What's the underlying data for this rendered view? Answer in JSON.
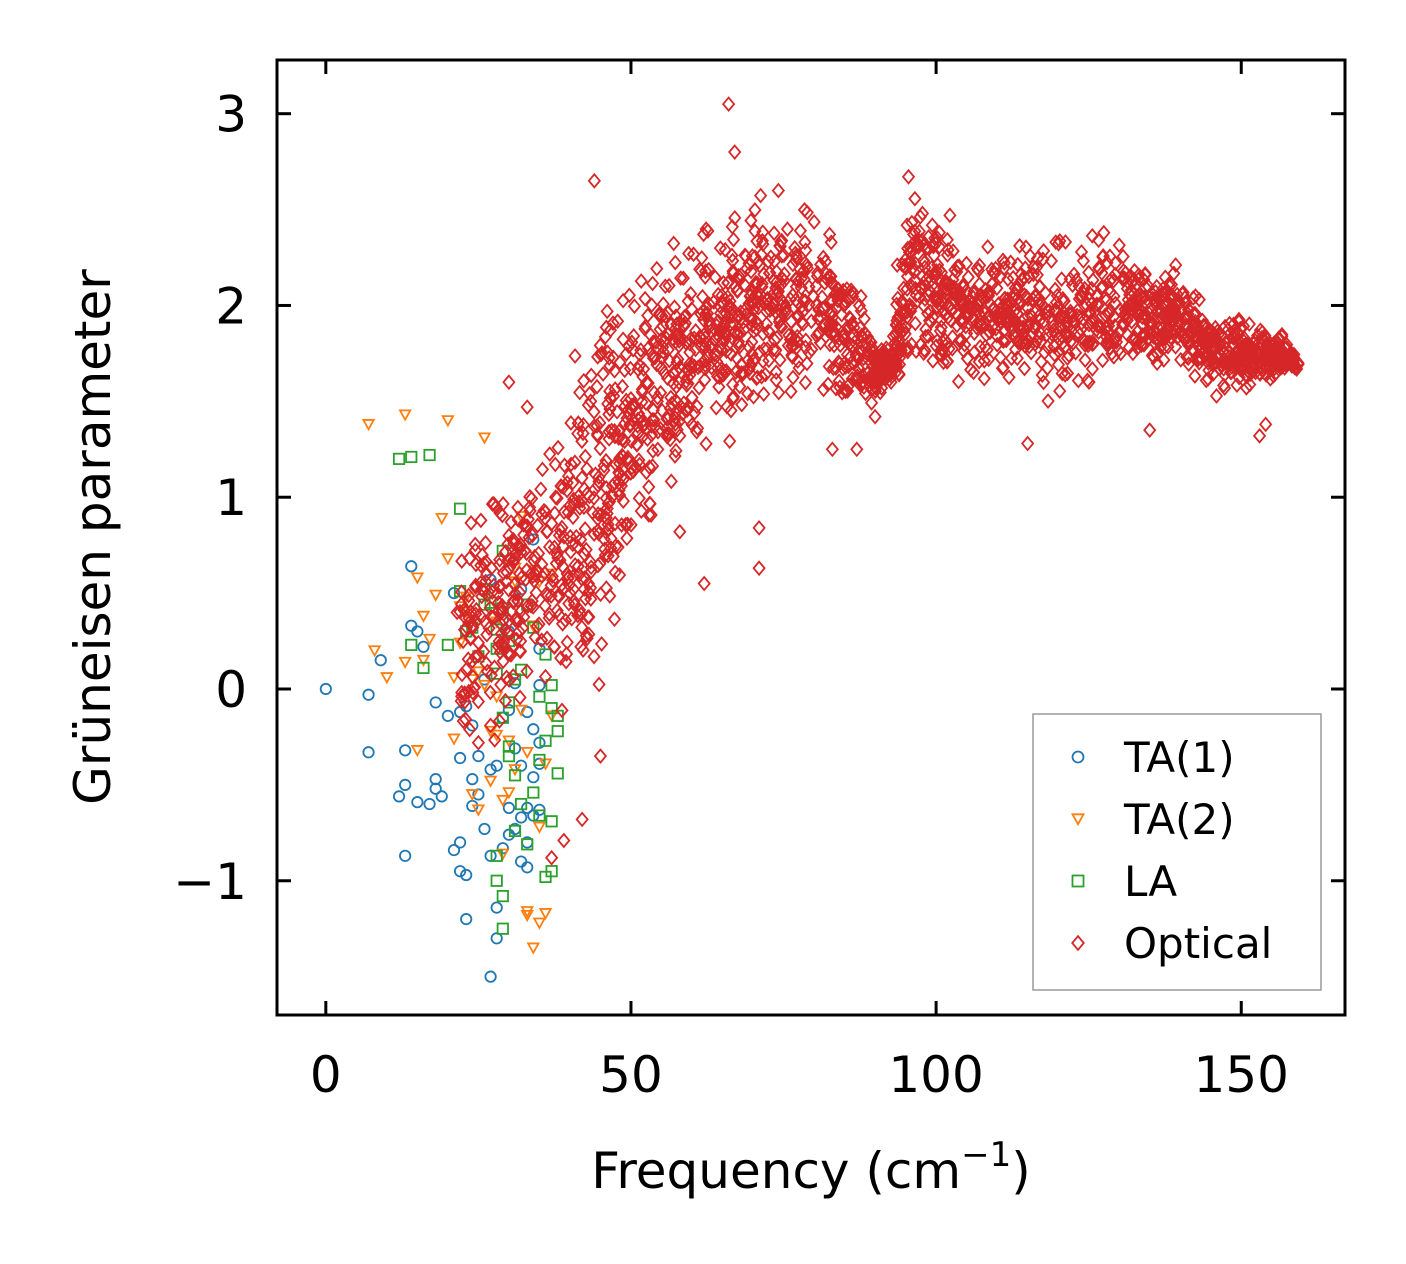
{
  "chart_data": {
    "type": "scatter",
    "xlabel": "Frequency (cm",
    "xlabel_sup": "−1",
    "xlabel_close": ")",
    "ylabel": "Grüneisen parameter",
    "xlim": [
      -8,
      167
    ],
    "ylim": [
      -1.7,
      3.28
    ],
    "xticks": [
      0,
      50,
      100,
      150
    ],
    "xtick_labels": [
      "0",
      "50",
      "100",
      "150"
    ],
    "yticks": [
      -1,
      0,
      1,
      2,
      3
    ],
    "ytick_labels": [
      "−1",
      "0",
      "1",
      "2",
      "3"
    ],
    "legend_position": "lower-right",
    "series": [
      {
        "name": "TA(1)",
        "marker": "circle",
        "color": "#1f77b4",
        "points": [
          [
            0,
            0
          ],
          [
            7,
            -0.03
          ],
          [
            7,
            -0.33
          ],
          [
            9,
            0.15
          ],
          [
            12,
            -0.56
          ],
          [
            13,
            -0.5
          ],
          [
            13,
            -0.87
          ],
          [
            13,
            -0.32
          ],
          [
            14,
            0.64
          ],
          [
            14,
            0.33
          ],
          [
            15,
            0.3
          ],
          [
            15,
            -0.59
          ],
          [
            16,
            0.22
          ],
          [
            17,
            -0.6
          ],
          [
            18,
            -0.07
          ],
          [
            18,
            -0.47
          ],
          [
            18,
            -0.52
          ],
          [
            19,
            -0.56
          ],
          [
            20,
            -0.14
          ],
          [
            21,
            -0.84
          ],
          [
            21,
            0.5
          ],
          [
            22,
            -0.8
          ],
          [
            22,
            -0.95
          ],
          [
            22,
            -0.36
          ],
          [
            22,
            -0.12
          ],
          [
            23,
            -1.2
          ],
          [
            23,
            -0.97
          ],
          [
            23,
            -0.09
          ],
          [
            24,
            -0.47
          ],
          [
            24,
            -0.61
          ],
          [
            24,
            -0.19
          ],
          [
            25,
            -0.55
          ],
          [
            25,
            -0.35
          ],
          [
            26,
            -0.73
          ],
          [
            26,
            0.05
          ],
          [
            27,
            -0.87
          ],
          [
            27,
            -0.42
          ],
          [
            27,
            -1.5
          ],
          [
            27,
            0.57
          ],
          [
            28,
            -0.4
          ],
          [
            28,
            -1.3
          ],
          [
            28,
            -1.14
          ],
          [
            29,
            -0.15
          ],
          [
            29,
            0.36
          ],
          [
            29,
            -0.83
          ],
          [
            30,
            0.3
          ],
          [
            30,
            -0.11
          ],
          [
            30,
            -0.62
          ],
          [
            30,
            -0.76
          ],
          [
            31,
            -0.73
          ],
          [
            31,
            -0.31
          ],
          [
            31,
            0.03
          ],
          [
            32,
            -0.9
          ],
          [
            32,
            -0.4
          ],
          [
            32,
            -0.67
          ],
          [
            32,
            0.52
          ],
          [
            33,
            -0.93
          ],
          [
            33,
            -0.62
          ],
          [
            33,
            -0.8
          ],
          [
            33,
            -0.12
          ],
          [
            34,
            0.78
          ],
          [
            34,
            -0.46
          ],
          [
            34,
            -0.21
          ],
          [
            34,
            -0.66
          ],
          [
            35,
            -0.63
          ],
          [
            35,
            -0.28
          ],
          [
            35,
            0.02
          ],
          [
            35,
            -0.39
          ],
          [
            35,
            0.21
          ]
        ]
      },
      {
        "name": "TA(2)",
        "marker": "triangle-down",
        "color": "#ff7f0e",
        "points": [
          [
            7,
            1.38
          ],
          [
            8,
            0.2
          ],
          [
            10,
            0.06
          ],
          [
            13,
            0.14
          ],
          [
            13,
            1.43
          ],
          [
            15,
            0.58
          ],
          [
            15,
            -0.32
          ],
          [
            16,
            0.38
          ],
          [
            16,
            0.15
          ],
          [
            17,
            0.26
          ],
          [
            18,
            0.49
          ],
          [
            19,
            0.89
          ],
          [
            20,
            1.4
          ],
          [
            20,
            0.68
          ],
          [
            21,
            -0.26
          ],
          [
            21,
            0.06
          ],
          [
            22,
            0.24
          ],
          [
            22,
            0.43
          ],
          [
            23,
            0.48
          ],
          [
            23,
            0.4
          ],
          [
            24,
            -0.55
          ],
          [
            24,
            0.05
          ],
          [
            25,
            -0.63
          ],
          [
            25,
            0.09
          ],
          [
            26,
            1.31
          ],
          [
            26,
            0.02
          ],
          [
            27,
            -0.22
          ],
          [
            27,
            -0.48
          ],
          [
            28,
            -0.24
          ],
          [
            28,
            0.35
          ],
          [
            28,
            -0.04
          ],
          [
            29,
            -0.58
          ],
          [
            29,
            -0.86
          ],
          [
            30,
            -0.54
          ],
          [
            30,
            -0.27
          ],
          [
            31,
            0.63
          ],
          [
            31,
            -0.42
          ],
          [
            31,
            0.56
          ],
          [
            32,
            0.9
          ],
          [
            32,
            -0.11
          ],
          [
            33,
            -1.18
          ],
          [
            33,
            -0.33
          ],
          [
            33,
            -1.16
          ],
          [
            34,
            -1.35
          ],
          [
            34,
            0.33
          ],
          [
            34,
            0.62
          ],
          [
            35,
            -1.22
          ],
          [
            35,
            0.56
          ],
          [
            35,
            -0.72
          ],
          [
            36,
            -1.17
          ],
          [
            36,
            -0.39
          ],
          [
            37,
            -0.14
          ],
          [
            37,
            0.6
          ]
        ]
      },
      {
        "name": "LA",
        "marker": "square",
        "color": "#2ca02c",
        "points": [
          [
            12,
            1.2
          ],
          [
            14,
            1.21
          ],
          [
            17,
            1.22
          ],
          [
            14,
            0.23
          ],
          [
            16,
            0.11
          ],
          [
            20,
            0.23
          ],
          [
            22,
            0.51
          ],
          [
            22,
            0.94
          ],
          [
            23,
            0.3
          ],
          [
            24,
            0.32
          ],
          [
            25,
            0.17
          ],
          [
            26,
            0.52
          ],
          [
            26,
            0.44
          ],
          [
            27,
            0.45
          ],
          [
            28,
            0.31
          ],
          [
            28,
            0.21
          ],
          [
            28,
            0.08
          ],
          [
            29,
            0.42
          ],
          [
            29,
            0.72
          ],
          [
            30,
            0.25
          ],
          [
            30,
            -0.07
          ],
          [
            30,
            -0.3
          ],
          [
            31,
            0.05
          ],
          [
            31,
            -0.45
          ],
          [
            32,
            0.1
          ],
          [
            32,
            -0.6
          ],
          [
            33,
            -0.81
          ],
          [
            33,
            0.44
          ],
          [
            34,
            0.32
          ],
          [
            34,
            -0.54
          ],
          [
            35,
            -0.04
          ],
          [
            35,
            -0.37
          ],
          [
            36,
            0.18
          ],
          [
            36,
            -0.27
          ],
          [
            37,
            -0.1
          ],
          [
            37,
            -0.69
          ],
          [
            37,
            0.02
          ],
          [
            38,
            -0.44
          ],
          [
            38,
            -0.14
          ],
          [
            38,
            -0.22
          ],
          [
            29,
            -0.15
          ],
          [
            30,
            -0.35
          ],
          [
            28,
            -1.0
          ],
          [
            29,
            -1.08
          ],
          [
            29,
            -1.25
          ],
          [
            28,
            -0.87
          ],
          [
            31,
            -0.74
          ],
          [
            35,
            -0.66
          ],
          [
            36,
            -0.98
          ],
          [
            37,
            -0.95
          ]
        ]
      },
      {
        "name": "Optical",
        "marker": "diamond",
        "color": "#d62728",
        "samples": 2400,
        "outliers": [
          [
            30,
            1.6
          ],
          [
            44,
            2.65
          ],
          [
            66,
            3.05
          ],
          [
            67,
            2.8
          ],
          [
            71,
            0.63
          ],
          [
            71,
            0.84
          ],
          [
            58,
            1.32
          ],
          [
            83,
            1.25
          ],
          [
            90,
            1.42
          ],
          [
            33,
            1.47
          ],
          [
            25,
            -0.28
          ],
          [
            27,
            -0.19
          ],
          [
            39,
            -0.79
          ],
          [
            37,
            -0.88
          ],
          [
            42,
            -0.68
          ],
          [
            45,
            -0.35
          ],
          [
            58,
            0.82
          ],
          [
            62,
            0.55
          ],
          [
            60,
            1.52
          ],
          [
            87,
            1.25
          ],
          [
            115,
            1.28
          ],
          [
            135,
            1.35
          ],
          [
            153,
            1.32
          ],
          [
            154,
            1.38
          ]
        ],
        "trend": [
          [
            22,
            -0.4,
            0.9
          ],
          [
            28,
            -0.4,
            1.3
          ],
          [
            33,
            -0.2,
            1.4
          ],
          [
            38,
            -0.3,
            1.7
          ],
          [
            42,
            -0.4,
            2.0
          ],
          [
            46,
            -0.2,
            2.3
          ],
          [
            50,
            0.4,
            2.3
          ],
          [
            55,
            0.9,
            2.4
          ],
          [
            60,
            1.0,
            2.5
          ],
          [
            65,
            1.2,
            2.6
          ],
          [
            70,
            1.3,
            2.7
          ],
          [
            75,
            1.3,
            2.75
          ],
          [
            80,
            1.4,
            2.7
          ],
          [
            85,
            1.3,
            2.4
          ],
          [
            90,
            1.5,
            1.8
          ],
          [
            93,
            1.6,
            1.8
          ],
          [
            96,
            1.5,
            2.95
          ],
          [
            100,
            1.5,
            2.6
          ],
          [
            105,
            1.5,
            2.45
          ],
          [
            110,
            1.5,
            2.4
          ],
          [
            115,
            1.5,
            2.4
          ],
          [
            120,
            1.4,
            2.45
          ],
          [
            125,
            1.5,
            2.45
          ],
          [
            130,
            1.6,
            2.45
          ],
          [
            135,
            1.6,
            2.3
          ],
          [
            140,
            1.6,
            2.3
          ],
          [
            145,
            1.5,
            2.05
          ],
          [
            150,
            1.5,
            2.0
          ],
          [
            155,
            1.55,
            1.95
          ],
          [
            159,
            1.65,
            1.75
          ]
        ]
      }
    ]
  }
}
